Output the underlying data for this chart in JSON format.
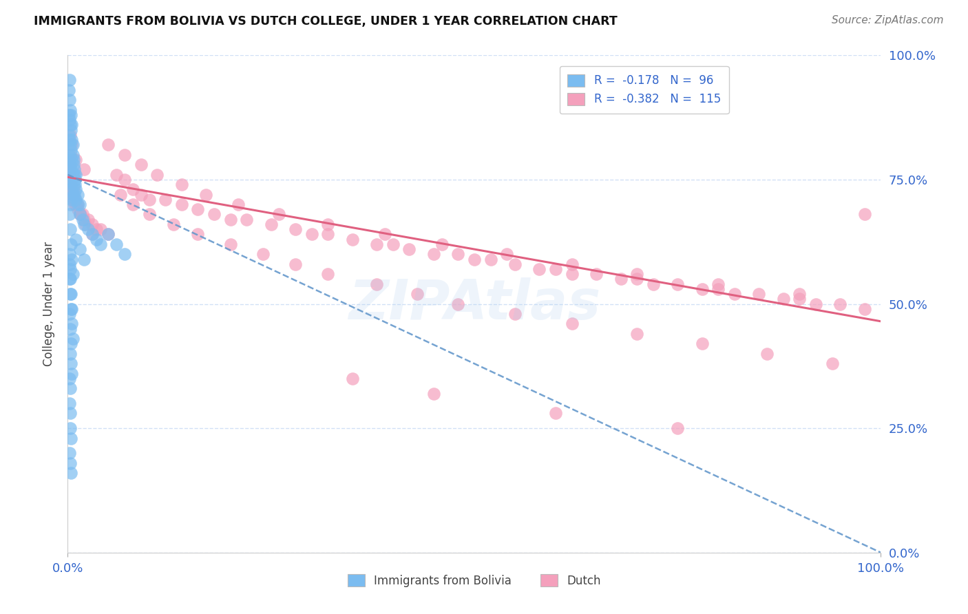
{
  "title": "IMMIGRANTS FROM BOLIVIA VS DUTCH COLLEGE, UNDER 1 YEAR CORRELATION CHART",
  "source": "Source: ZipAtlas.com",
  "ylabel": "College, Under 1 year",
  "xlim": [
    0.0,
    1.0
  ],
  "ylim": [
    0.0,
    1.0
  ],
  "xtick_labels": [
    "0.0%",
    "100.0%"
  ],
  "xtick_positions": [
    0.0,
    1.0
  ],
  "ytick_labels": [
    "0.0%",
    "25.0%",
    "50.0%",
    "75.0%",
    "100.0%"
  ],
  "ytick_positions": [
    0.0,
    0.25,
    0.5,
    0.75,
    1.0
  ],
  "bolivia_color": "#7BBCF0",
  "dutch_color": "#F4A0BC",
  "bolivia_R": -0.178,
  "bolivia_N": 96,
  "dutch_R": -0.382,
  "dutch_N": 115,
  "legend_label_bolivia": "Immigrants from Bolivia",
  "legend_label_dutch": "Dutch",
  "trend_color_bolivia": "#6699CC",
  "trend_color_dutch": "#E06080",
  "watermark": "ZIPAtlas",
  "axis_label_color": "#3366CC",
  "title_color": "#111111",
  "source_color": "#777777",
  "grid_color": "#CCDDF5",
  "bolivia_trend_start_y": 0.76,
  "bolivia_trend_end_y": 0.0,
  "dutch_trend_start_y": 0.755,
  "dutch_trend_end_y": 0.465,
  "bolivia_x": [
    0.001,
    0.001,
    0.001,
    0.001,
    0.002,
    0.002,
    0.002,
    0.002,
    0.002,
    0.003,
    0.003,
    0.003,
    0.003,
    0.003,
    0.003,
    0.003,
    0.004,
    0.004,
    0.004,
    0.004,
    0.004,
    0.005,
    0.005,
    0.005,
    0.005,
    0.005,
    0.006,
    0.006,
    0.006,
    0.006,
    0.007,
    0.007,
    0.007,
    0.008,
    0.008,
    0.008,
    0.009,
    0.009,
    0.01,
    0.01,
    0.01,
    0.012,
    0.012,
    0.015,
    0.015,
    0.018,
    0.02,
    0.025,
    0.03,
    0.035,
    0.04,
    0.002,
    0.003,
    0.004,
    0.005,
    0.006,
    0.002,
    0.003,
    0.004,
    0.005,
    0.002,
    0.003,
    0.004,
    0.003,
    0.004,
    0.005,
    0.002,
    0.003,
    0.002,
    0.003,
    0.004,
    0.005,
    0.006,
    0.002,
    0.003,
    0.003,
    0.004,
    0.002,
    0.003,
    0.004,
    0.05,
    0.06,
    0.07,
    0.002,
    0.003,
    0.01,
    0.015,
    0.02
  ],
  "bolivia_y": [
    0.93,
    0.88,
    0.84,
    0.8,
    0.91,
    0.87,
    0.83,
    0.79,
    0.95,
    0.89,
    0.86,
    0.82,
    0.78,
    0.74,
    0.7,
    0.76,
    0.85,
    0.81,
    0.77,
    0.73,
    0.88,
    0.83,
    0.79,
    0.75,
    0.71,
    0.86,
    0.8,
    0.76,
    0.72,
    0.82,
    0.78,
    0.74,
    0.79,
    0.76,
    0.72,
    0.77,
    0.74,
    0.75,
    0.73,
    0.71,
    0.76,
    0.7,
    0.72,
    0.68,
    0.7,
    0.67,
    0.66,
    0.65,
    0.64,
    0.63,
    0.62,
    0.68,
    0.65,
    0.62,
    0.59,
    0.56,
    0.58,
    0.55,
    0.52,
    0.49,
    0.48,
    0.45,
    0.42,
    0.4,
    0.38,
    0.36,
    0.35,
    0.33,
    0.55,
    0.52,
    0.49,
    0.46,
    0.43,
    0.3,
    0.28,
    0.25,
    0.23,
    0.2,
    0.18,
    0.16,
    0.64,
    0.62,
    0.6,
    0.6,
    0.57,
    0.63,
    0.61,
    0.59
  ],
  "dutch_x": [
    0.002,
    0.003,
    0.004,
    0.005,
    0.006,
    0.007,
    0.008,
    0.01,
    0.012,
    0.015,
    0.018,
    0.02,
    0.025,
    0.03,
    0.035,
    0.04,
    0.05,
    0.003,
    0.004,
    0.005,
    0.007,
    0.009,
    0.012,
    0.016,
    0.022,
    0.03,
    0.06,
    0.07,
    0.08,
    0.09,
    0.1,
    0.12,
    0.14,
    0.16,
    0.18,
    0.2,
    0.22,
    0.25,
    0.28,
    0.3,
    0.32,
    0.35,
    0.38,
    0.4,
    0.42,
    0.45,
    0.48,
    0.5,
    0.52,
    0.55,
    0.58,
    0.6,
    0.62,
    0.65,
    0.68,
    0.7,
    0.72,
    0.75,
    0.78,
    0.8,
    0.82,
    0.85,
    0.88,
    0.9,
    0.92,
    0.95,
    0.98,
    0.065,
    0.08,
    0.1,
    0.13,
    0.16,
    0.2,
    0.24,
    0.28,
    0.32,
    0.38,
    0.43,
    0.48,
    0.55,
    0.62,
    0.7,
    0.78,
    0.86,
    0.94,
    0.05,
    0.07,
    0.09,
    0.11,
    0.14,
    0.17,
    0.21,
    0.26,
    0.32,
    0.39,
    0.46,
    0.54,
    0.62,
    0.7,
    0.8,
    0.9,
    0.35,
    0.45,
    0.6,
    0.75,
    0.98,
    0.003,
    0.005,
    0.01,
    0.02
  ],
  "dutch_y": [
    0.78,
    0.76,
    0.74,
    0.73,
    0.72,
    0.71,
    0.7,
    0.7,
    0.69,
    0.68,
    0.68,
    0.67,
    0.67,
    0.66,
    0.65,
    0.65,
    0.64,
    0.8,
    0.77,
    0.75,
    0.73,
    0.71,
    0.7,
    0.68,
    0.66,
    0.64,
    0.76,
    0.75,
    0.73,
    0.72,
    0.71,
    0.71,
    0.7,
    0.69,
    0.68,
    0.67,
    0.67,
    0.66,
    0.65,
    0.64,
    0.64,
    0.63,
    0.62,
    0.62,
    0.61,
    0.6,
    0.6,
    0.59,
    0.59,
    0.58,
    0.57,
    0.57,
    0.56,
    0.56,
    0.55,
    0.55,
    0.54,
    0.54,
    0.53,
    0.53,
    0.52,
    0.52,
    0.51,
    0.51,
    0.5,
    0.5,
    0.49,
    0.72,
    0.7,
    0.68,
    0.66,
    0.64,
    0.62,
    0.6,
    0.58,
    0.56,
    0.54,
    0.52,
    0.5,
    0.48,
    0.46,
    0.44,
    0.42,
    0.4,
    0.38,
    0.82,
    0.8,
    0.78,
    0.76,
    0.74,
    0.72,
    0.7,
    0.68,
    0.66,
    0.64,
    0.62,
    0.6,
    0.58,
    0.56,
    0.54,
    0.52,
    0.35,
    0.32,
    0.28,
    0.25,
    0.68,
    0.84,
    0.82,
    0.79,
    0.77
  ]
}
